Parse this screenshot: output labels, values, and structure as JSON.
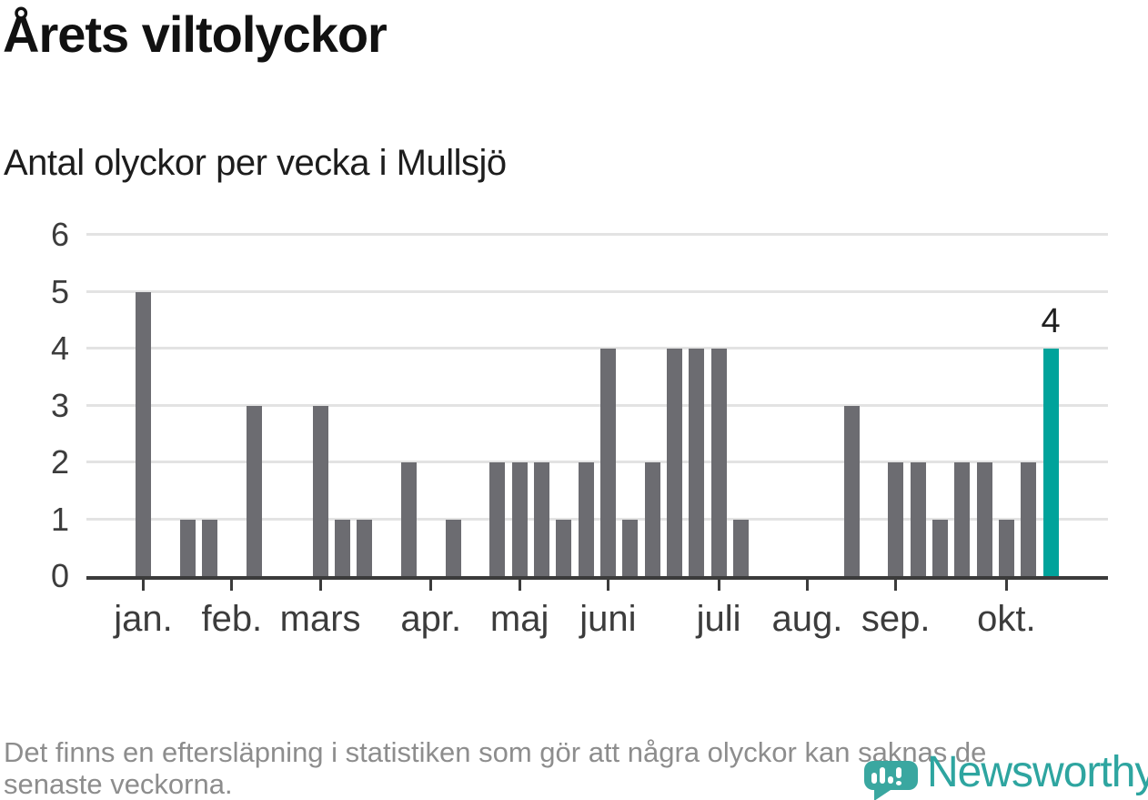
{
  "header": {
    "title": "Årets viltolyckor",
    "subtitle": "Antal olyckor per vecka i Mullsjö"
  },
  "chart_data": {
    "type": "bar",
    "title": "Årets viltolyckor",
    "subtitle": "Antal olyckor per vecka i Mullsjö",
    "xlabel": "",
    "ylabel": "",
    "ylim": [
      0,
      6
    ],
    "yticks": [
      0,
      1,
      2,
      3,
      4,
      5,
      6
    ],
    "grid": true,
    "legend": "none",
    "x_unit": "vecka",
    "values": [
      5,
      0,
      1,
      1,
      0,
      3,
      0,
      0,
      3,
      1,
      1,
      0,
      2,
      0,
      1,
      0,
      2,
      2,
      2,
      1,
      2,
      4,
      1,
      2,
      4,
      4,
      4,
      1,
      0,
      0,
      0,
      0,
      3,
      0,
      2,
      2,
      1,
      2,
      2,
      1,
      2,
      4
    ],
    "month_ticks": [
      {
        "label": "jan.",
        "week_index": 0
      },
      {
        "label": "feb.",
        "week_index": 4
      },
      {
        "label": "mars",
        "week_index": 8
      },
      {
        "label": "apr.",
        "week_index": 13
      },
      {
        "label": "maj",
        "week_index": 17
      },
      {
        "label": "juni",
        "week_index": 21
      },
      {
        "label": "juli",
        "week_index": 26
      },
      {
        "label": "aug.",
        "week_index": 30
      },
      {
        "label": "sep.",
        "week_index": 34
      },
      {
        "label": "okt.",
        "week_index": 39
      }
    ],
    "highlight_index": 41,
    "highlight_label": "4",
    "colors": {
      "bar": "#6c6c71",
      "highlight": "#00a39b",
      "gridline": "#e3e3e3",
      "axis": "#3b3b3b",
      "tick_label": "#3c3c3c",
      "value_label": "#202020"
    }
  },
  "footer": {
    "lines": [
      "Det finns en eftersläpning i statistiken som gör att några olyckor kan saknas de",
      "senaste veckorna."
    ]
  },
  "logo": {
    "text": "Newsworthy",
    "color": "#2ea5a0",
    "icon": "newsworthy-speech-bubble-bar-chart-icon"
  }
}
